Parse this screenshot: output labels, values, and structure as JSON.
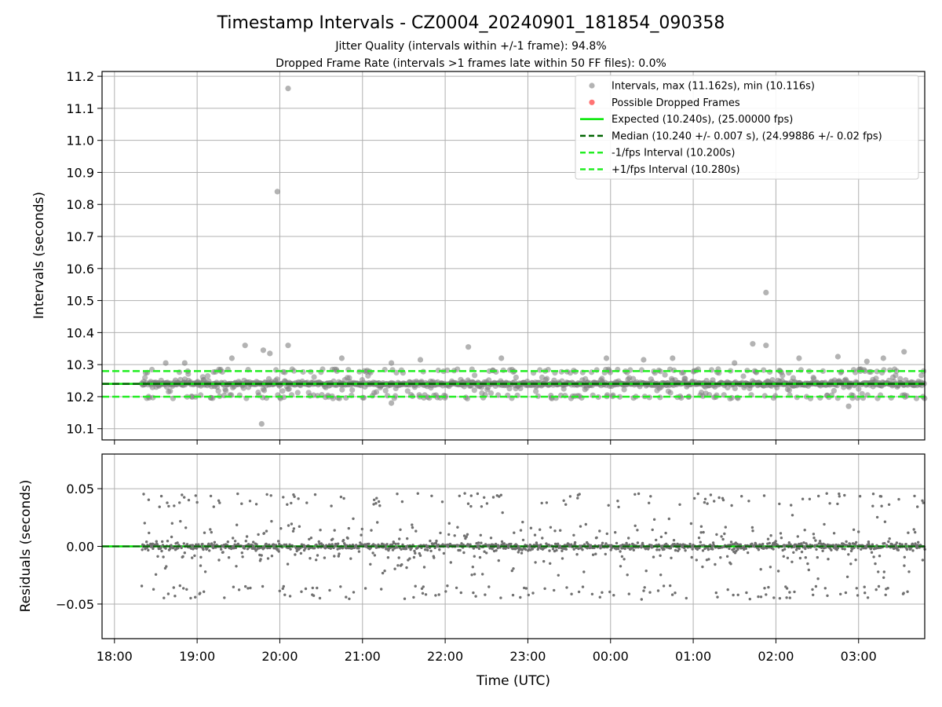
{
  "chart_data": [
    {
      "type": "scatter",
      "title": "Timestamp Intervals - CZ0004_20240901_181854_090358",
      "subtitle_lines": [
        "Jitter Quality (intervals within +/-1 frame): 94.8%",
        "Dropped Frame Rate (intervals >1 frames late within 50 FF files): 0.0%"
      ],
      "ylabel": "Intervals (seconds)",
      "ylim": [
        10.065,
        11.215
      ],
      "yticks": [
        "10.1",
        "10.2",
        "10.3",
        "10.4",
        "10.5",
        "10.6",
        "10.7",
        "10.8",
        "10.9",
        "11.0",
        "11.1",
        "11.2"
      ],
      "grid": true,
      "legend_position": "top-right",
      "legend": [
        "Intervals, max (11.162s), min (10.116s)",
        "Possible Dropped Frames",
        "Expected (10.240s), (25.00000 fps)",
        "Median (10.240 +/- 0.007 s), (24.99886 +/- 0.02 fps)",
        "-1/fps Interval (10.200s)",
        "+1/fps Interval (10.280s)"
      ],
      "reference_lines": {
        "expected": 10.24,
        "median": 10.24,
        "minus_one_frame": 10.2,
        "plus_one_frame": 10.28
      },
      "x_range_hours": [
        18.33,
        27.8
      ],
      "outliers": [
        {
          "t": 18.62,
          "v": 10.305
        },
        {
          "t": 18.85,
          "v": 10.305
        },
        {
          "t": 19.42,
          "v": 10.32
        },
        {
          "t": 19.58,
          "v": 10.36
        },
        {
          "t": 19.78,
          "v": 10.115
        },
        {
          "t": 19.8,
          "v": 10.345
        },
        {
          "t": 19.88,
          "v": 10.335
        },
        {
          "t": 19.97,
          "v": 10.84
        },
        {
          "t": 20.1,
          "v": 11.162
        },
        {
          "t": 20.1,
          "v": 10.36
        },
        {
          "t": 20.75,
          "v": 10.32
        },
        {
          "t": 21.35,
          "v": 10.18
        },
        {
          "t": 21.35,
          "v": 10.305
        },
        {
          "t": 21.7,
          "v": 10.315
        },
        {
          "t": 22.28,
          "v": 10.355
        },
        {
          "t": 22.68,
          "v": 10.32
        },
        {
          "t": 23.95,
          "v": 10.32
        },
        {
          "t": 24.4,
          "v": 10.315
        },
        {
          "t": 24.75,
          "v": 10.32
        },
        {
          "t": 25.5,
          "v": 10.305
        },
        {
          "t": 25.72,
          "v": 10.365
        },
        {
          "t": 25.88,
          "v": 10.525
        },
        {
          "t": 25.88,
          "v": 10.36
        },
        {
          "t": 26.28,
          "v": 10.32
        },
        {
          "t": 26.75,
          "v": 10.325
        },
        {
          "t": 26.88,
          "v": 10.17
        },
        {
          "t": 27.1,
          "v": 10.31
        },
        {
          "t": 27.3,
          "v": 10.32
        },
        {
          "t": 27.55,
          "v": 10.34
        }
      ]
    },
    {
      "type": "scatter",
      "xlabel": "Time (UTC)",
      "ylabel": "Residuals (seconds)",
      "ylim": [
        -0.08,
        0.08
      ],
      "yticks": [
        "−0.05",
        "0.00",
        "0.05"
      ],
      "xticks": [
        "18:00",
        "19:00",
        "20:00",
        "21:00",
        "22:00",
        "23:00",
        "00:00",
        "01:00",
        "02:00",
        "03:00"
      ],
      "x_range_hours": [
        17.85,
        27.8
      ],
      "grid": true,
      "reference_line": 0.0
    }
  ],
  "colors": {
    "points": "#808080",
    "expected": "#00e600",
    "median": "#006400",
    "frame_bounds": "#22ee22",
    "dropped": "#ff0000",
    "grid": "#b0b0b0"
  }
}
